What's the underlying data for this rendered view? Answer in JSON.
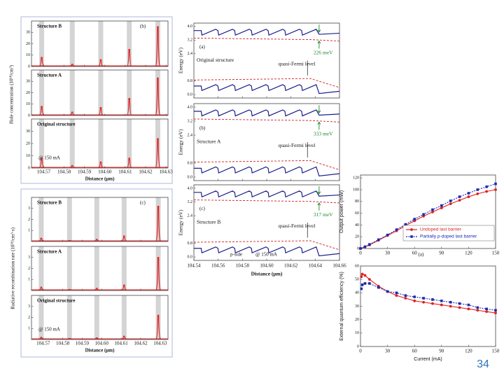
{
  "page_number": "34",
  "chart_data": [
    {
      "type": "spikes",
      "panel_label": "(b)",
      "ylabel": "Hole concentration (10¹⁸/cm³)",
      "xlabel": "Distance (μm)",
      "note": "@ 150 mA",
      "xlim": [
        104.564,
        104.631
      ],
      "xticks": [
        104.57,
        104.58,
        104.59,
        {
          "value": 104.6,
          "label": "104.60"
        },
        104.61,
        104.62,
        104.63
      ],
      "x": [
        104.569,
        104.584,
        104.598,
        104.612,
        104.626
      ],
      "color": "#e02020",
      "panels": [
        {
          "name": "Structure B",
          "ylim": [
            0,
            40
          ],
          "yticks": [
            0,
            10,
            20,
            30
          ],
          "values": [
            8,
            2,
            6,
            15,
            35
          ]
        },
        {
          "name": "Structure A",
          "ylim": [
            0,
            40
          ],
          "yticks": [
            0,
            10,
            20,
            30
          ],
          "values": [
            8,
            3,
            7,
            15,
            33
          ]
        },
        {
          "name": "Original structure",
          "ylim": [
            0,
            40
          ],
          "yticks": [
            0,
            10,
            20,
            30
          ],
          "values": [
            8,
            2,
            5,
            8,
            24
          ]
        }
      ]
    },
    {
      "type": "spikes",
      "panel_label": "(c)",
      "ylabel": "Radiative recombination rate (10²⁸/cm³·s)",
      "xlabel": "Distance (μm)",
      "note": "@ 150 mA",
      "xlim": [
        104.564,
        104.634
      ],
      "xticks": [
        104.57,
        104.58,
        104.59,
        {
          "value": 104.6,
          "label": "104.60"
        },
        104.61,
        104.62,
        104.63
      ],
      "x": [
        104.569,
        104.5835,
        104.5975,
        104.6115,
        104.629
      ],
      "color": "#e02020",
      "panels": [
        {
          "name": "Structure B",
          "ylim": [
            0,
            4
          ],
          "yticks": [
            1,
            2,
            3
          ],
          "values": [
            0.3,
            0.1,
            0.2,
            0.5,
            3.2
          ]
        },
        {
          "name": "Structure A",
          "ylim": [
            0,
            4
          ],
          "yticks": [
            1,
            2,
            3
          ],
          "values": [
            0.3,
            0.1,
            0.2,
            0.5,
            3.0
          ]
        },
        {
          "name": "Original structure",
          "ylim": [
            0,
            4
          ],
          "yticks": [
            1,
            2,
            3
          ],
          "values": [
            0.2,
            0.1,
            0.15,
            0.3,
            2.2
          ]
        }
      ]
    },
    {
      "type": "band",
      "ylabel": "Energy (eV)",
      "xlabel": "Distance (μm)",
      "fermi_label": "quasi-Fermi level",
      "pside": "p-side",
      "note": "@ 150 mA",
      "xlim": [
        104.54,
        104.66
      ],
      "xticks": [
        104.54,
        104.56,
        104.58,
        {
          "value": 104.6,
          "label": "104.60"
        },
        104.62,
        104.64,
        104.66
      ],
      "ylim": [
        -0.2,
        4.2
      ],
      "yticks": [
        {
          "value": 4,
          "label": "4.0"
        },
        3.2,
        2.4,
        0.8,
        {
          "value": 0,
          "label": "0.0"
        }
      ],
      "band_color": "#1a1f8c",
      "fermi_color": "#d02020",
      "gap_color": "#1a8a2a",
      "panels": [
        {
          "label": "(a)",
          "name": "Original structure",
          "gap": "226 meV"
        },
        {
          "label": "(b)",
          "name": "Structure A",
          "gap": "333 meV"
        },
        {
          "label": "(c)",
          "name": "Structure B",
          "gap": "317 meV"
        }
      ]
    },
    {
      "type": "line",
      "ylabel": "Output power (mW)",
      "panel_label": "(a)",
      "xlim": [
        0,
        150
      ],
      "xticks": [
        0,
        30,
        60,
        90,
        120,
        150
      ],
      "ylim": [
        0,
        125
      ],
      "yticks": [
        0,
        20,
        40,
        60,
        80,
        100,
        120
      ],
      "legend": "lower right",
      "x": [
        0,
        5,
        10,
        20,
        30,
        40,
        50,
        60,
        70,
        80,
        90,
        100,
        110,
        120,
        130,
        140,
        150
      ],
      "series": [
        {
          "name": "Undoped last barrier",
          "color": "#e02020",
          "marker": "circle",
          "dash": false,
          "values": [
            0,
            3,
            6,
            14,
            22,
            30,
            39,
            47,
            55,
            62,
            69,
            76,
            82,
            88,
            93,
            97,
            100
          ]
        },
        {
          "name": "Partially p-doped last barrier",
          "color": "#1a2ab0",
          "marker": "square",
          "dash": true,
          "values": [
            0,
            3,
            7,
            15,
            23,
            32,
            41,
            50,
            58,
            66,
            73,
            81,
            88,
            94,
            100,
            105,
            110
          ]
        }
      ]
    },
    {
      "type": "line",
      "ylabel": "External quantum efficiency (%)",
      "xlabel": "Current (mA)",
      "xlim": [
        0,
        150
      ],
      "xticks": [
        0,
        30,
        60,
        90,
        120,
        150
      ],
      "ylim": [
        0,
        60
      ],
      "yticks": [
        0,
        10,
        20,
        30,
        40,
        50,
        60
      ],
      "x": [
        1,
        2,
        5,
        10,
        20,
        30,
        40,
        50,
        60,
        70,
        80,
        90,
        100,
        110,
        120,
        130,
        140,
        150
      ],
      "series": [
        {
          "name": "Undoped last barrier",
          "color": "#e02020",
          "marker": "circle",
          "dash": false,
          "values": [
            52,
            54,
            53,
            50,
            45,
            41,
            38,
            36,
            34,
            33,
            32,
            31,
            30,
            29,
            28,
            27,
            26,
            25
          ]
        },
        {
          "name": "Partially p-doped last barrier",
          "color": "#1a2ab0",
          "marker": "square",
          "dash": true,
          "values": [
            43,
            46,
            47,
            47,
            44,
            41,
            40,
            38,
            37,
            36,
            35,
            34,
            33,
            32,
            31,
            29,
            28,
            27
          ]
        }
      ]
    }
  ]
}
